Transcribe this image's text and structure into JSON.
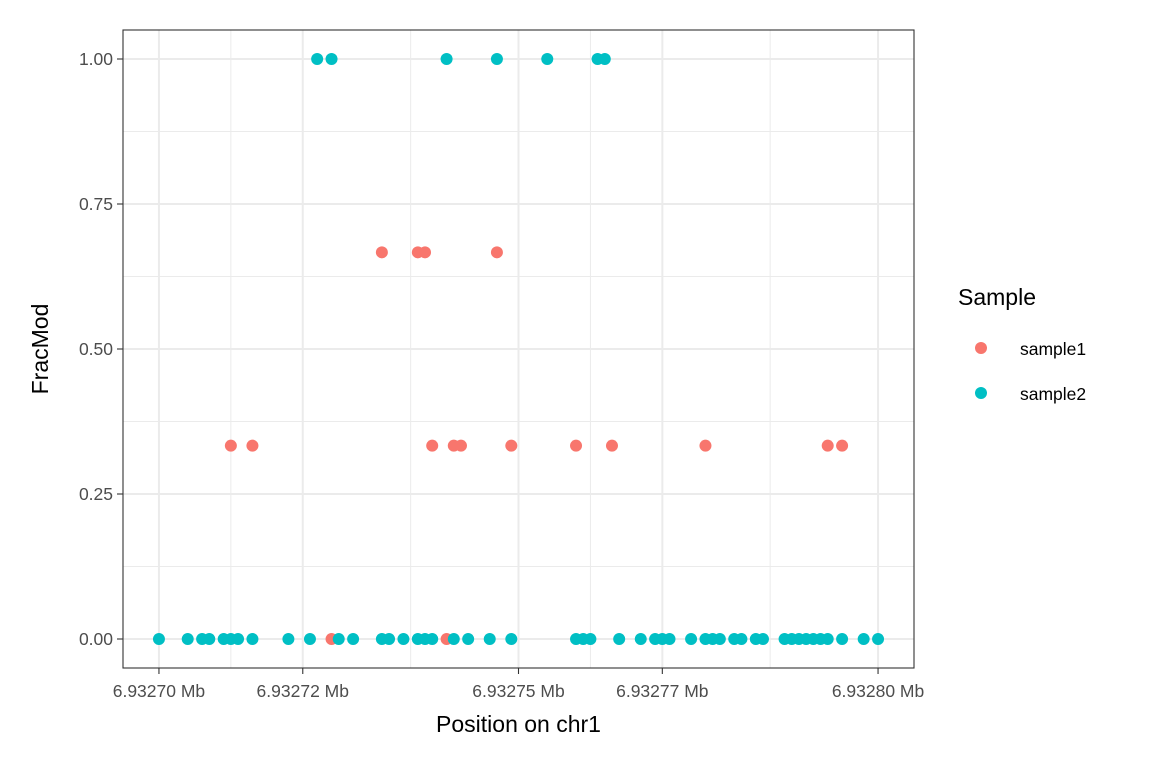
{
  "chart_data": {
    "type": "scatter",
    "title": "",
    "xlabel": "Position on chr1",
    "ylabel": "FracMod",
    "x_unit_suffix": " Mb",
    "xlim": [
      6.932695,
      6.932805
    ],
    "ylim": [
      -0.05,
      1.05
    ],
    "x_ticks": [
      6.9327,
      6.93272,
      6.93275,
      6.93277,
      6.9328
    ],
    "x_tick_labels": [
      "6.93270 Mb",
      "6.93272 Mb",
      "6.93275 Mb",
      "6.93277 Mb",
      "6.93280 Mb"
    ],
    "y_ticks": [
      0,
      0.25,
      0.5,
      0.75,
      1.0
    ],
    "y_tick_labels": [
      "0.00",
      "0.25",
      "0.50",
      "0.75",
      "1.00"
    ],
    "grid": true,
    "legend": {
      "title": "Sample",
      "position": "right"
    },
    "series": [
      {
        "name": "sample1",
        "color": "#F8766D",
        "points": [
          [
            6.93271,
            0.3333
          ],
          [
            6.932713,
            0.3333
          ],
          [
            6.932724,
            0.0
          ],
          [
            6.932731,
            0.6667
          ],
          [
            6.932736,
            0.6667
          ],
          [
            6.932737,
            0.6667
          ],
          [
            6.932738,
            0.3333
          ],
          [
            6.93274,
            0.0
          ],
          [
            6.932741,
            0.3333
          ],
          [
            6.932742,
            0.3333
          ],
          [
            6.932747,
            0.6667
          ],
          [
            6.932749,
            0.3333
          ],
          [
            6.932758,
            0.3333
          ],
          [
            6.932763,
            0.3333
          ],
          [
            6.932776,
            0.3333
          ],
          [
            6.932793,
            0.3333
          ],
          [
            6.932795,
            0.3333
          ]
        ]
      },
      {
        "name": "sample2",
        "color": "#00BFC4",
        "points": [
          [
            6.932722,
            1.0
          ],
          [
            6.932724,
            1.0
          ],
          [
            6.93274,
            1.0
          ],
          [
            6.932747,
            1.0
          ],
          [
            6.932754,
            1.0
          ],
          [
            6.932761,
            1.0
          ],
          [
            6.932762,
            1.0
          ],
          [
            6.9327,
            0.0
          ],
          [
            6.932704,
            0.0
          ],
          [
            6.932706,
            0.0
          ],
          [
            6.932707,
            0.0
          ],
          [
            6.932709,
            0.0
          ],
          [
            6.93271,
            0.0
          ],
          [
            6.932711,
            0.0
          ],
          [
            6.932713,
            0.0
          ],
          [
            6.932718,
            0.0
          ],
          [
            6.932721,
            0.0
          ],
          [
            6.932725,
            0.0
          ],
          [
            6.932727,
            0.0
          ],
          [
            6.932731,
            0.0
          ],
          [
            6.932732,
            0.0
          ],
          [
            6.932734,
            0.0
          ],
          [
            6.932736,
            0.0
          ],
          [
            6.932737,
            0.0
          ],
          [
            6.932738,
            0.0
          ],
          [
            6.932741,
            0.0
          ],
          [
            6.932743,
            0.0
          ],
          [
            6.932746,
            0.0
          ],
          [
            6.932749,
            0.0
          ],
          [
            6.932758,
            0.0
          ],
          [
            6.932759,
            0.0
          ],
          [
            6.93276,
            0.0
          ],
          [
            6.932764,
            0.0
          ],
          [
            6.932767,
            0.0
          ],
          [
            6.932769,
            0.0
          ],
          [
            6.93277,
            0.0
          ],
          [
            6.932771,
            0.0
          ],
          [
            6.932774,
            0.0
          ],
          [
            6.932776,
            0.0
          ],
          [
            6.932777,
            0.0
          ],
          [
            6.932778,
            0.0
          ],
          [
            6.93278,
            0.0
          ],
          [
            6.932781,
            0.0
          ],
          [
            6.932783,
            0.0
          ],
          [
            6.932784,
            0.0
          ],
          [
            6.932787,
            0.0
          ],
          [
            6.932788,
            0.0
          ],
          [
            6.932789,
            0.0
          ],
          [
            6.93279,
            0.0
          ],
          [
            6.932791,
            0.0
          ],
          [
            6.932792,
            0.0
          ],
          [
            6.932793,
            0.0
          ],
          [
            6.932795,
            0.0
          ],
          [
            6.932798,
            0.0
          ],
          [
            6.9328,
            0.0
          ]
        ]
      }
    ]
  }
}
